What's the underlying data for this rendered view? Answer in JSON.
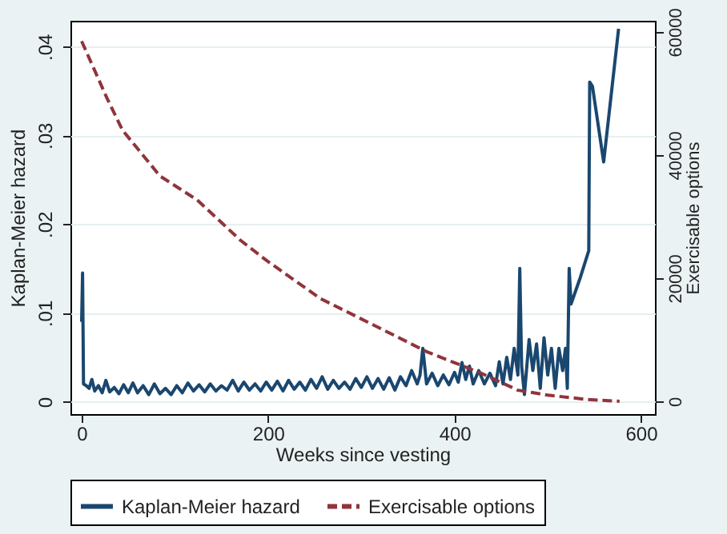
{
  "chart_data": {
    "type": "line",
    "xlabel": "Weeks since vesting",
    "ylabel": "Kaplan-Meier hazard",
    "y2label": "Exercisable options",
    "xlim": [
      -12,
      615
    ],
    "xticks": [
      0,
      200,
      400,
      600
    ],
    "ylim": [
      -0.0014,
      0.0429
    ],
    "yticks": [
      0,
      {
        "value": 0.01,
        "label": ".01"
      },
      {
        "value": 0.02,
        "label": ".02"
      },
      {
        "value": 0.03,
        "label": ".03"
      },
      {
        "value": 0.04,
        "label": ".04"
      }
    ],
    "y2lim": [
      -2080,
      61810
    ],
    "y2ticks": [
      0,
      20000,
      40000,
      60000
    ],
    "grid": "y",
    "legend": "bottom",
    "series": [
      {
        "name": "Kaplan-Meier hazard",
        "color": "#1a476f",
        "line_style": "solid",
        "x": [
          0,
          1,
          2,
          5,
          8,
          11,
          14,
          18,
          22,
          26,
          30,
          35,
          40,
          45,
          50,
          55,
          60,
          66,
          72,
          78,
          84,
          90,
          96,
          102,
          108,
          114,
          120,
          126,
          132,
          138,
          144,
          150,
          156,
          162,
          168,
          174,
          180,
          186,
          192,
          198,
          204,
          210,
          216,
          222,
          228,
          234,
          240,
          246,
          252,
          258,
          264,
          270,
          276,
          282,
          288,
          294,
          300,
          306,
          312,
          318,
          324,
          330,
          336,
          342,
          348,
          354,
          360,
          363,
          366,
          370,
          376,
          382,
          388,
          394,
          400,
          404,
          408,
          412,
          416,
          420,
          426,
          432,
          438,
          444,
          448,
          452,
          456,
          460,
          464,
          468,
          470,
          472,
          475,
          480,
          484,
          488,
          492,
          496,
          500,
          504,
          508,
          512,
          516,
          519,
          521,
          523,
          525,
          535,
          544,
          545,
          548,
          560,
          576
        ],
        "values": [
          0.009,
          0.0145,
          0.002,
          0.0018,
          0.0015,
          0.0025,
          0.0012,
          0.0018,
          0.001,
          0.0024,
          0.0011,
          0.0016,
          0.0009,
          0.0019,
          0.001,
          0.0021,
          0.001,
          0.0018,
          0.0008,
          0.002,
          0.0009,
          0.0015,
          0.0008,
          0.0018,
          0.001,
          0.0021,
          0.0012,
          0.0019,
          0.0011,
          0.002,
          0.0012,
          0.0018,
          0.0013,
          0.0024,
          0.0012,
          0.0022,
          0.0013,
          0.002,
          0.0012,
          0.0022,
          0.0013,
          0.0023,
          0.0012,
          0.0024,
          0.0014,
          0.0022,
          0.0013,
          0.0025,
          0.0015,
          0.0028,
          0.0014,
          0.0024,
          0.0015,
          0.0022,
          0.0014,
          0.0026,
          0.0016,
          0.0028,
          0.0015,
          0.0026,
          0.0014,
          0.0027,
          0.0013,
          0.0028,
          0.0018,
          0.0035,
          0.002,
          0.003,
          0.006,
          0.002,
          0.0032,
          0.0018,
          0.003,
          0.0019,
          0.0033,
          0.0022,
          0.0044,
          0.0025,
          0.004,
          0.002,
          0.0035,
          0.002,
          0.0032,
          0.0018,
          0.0045,
          0.002,
          0.005,
          0.0025,
          0.006,
          0.003,
          0.015,
          0.004,
          0.0008,
          0.007,
          0.0035,
          0.0065,
          0.0015,
          0.0072,
          0.003,
          0.006,
          0.0015,
          0.006,
          0.0035,
          0.006,
          0.0015,
          0.015,
          0.011,
          0.014,
          0.017,
          0.036,
          0.0355,
          0.027,
          0.042
        ]
      },
      {
        "name": "Exercisable options",
        "color": "#90353b",
        "line_style": "dashed",
        "axis": "y2",
        "x": [
          0,
          27,
          44,
          84,
          124,
          170,
          199,
          256,
          313,
          371,
          428,
          468,
          500,
          542,
          577
        ],
        "values": [
          58500,
          49300,
          44000,
          36600,
          32700,
          26200,
          22800,
          16700,
          12400,
          8000,
          4600,
          1800,
          1000,
          300,
          0
        ]
      }
    ]
  }
}
